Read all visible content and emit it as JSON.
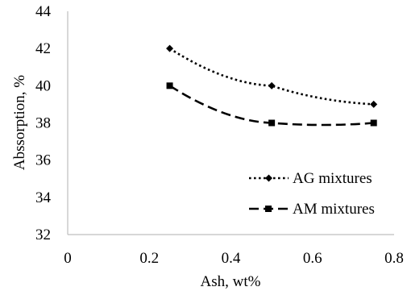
{
  "chart_data": {
    "type": "line",
    "xlabel": "Ash, wt%",
    "ylabel": "Abssorption, %",
    "xlim": [
      0,
      0.8
    ],
    "ylim": [
      32,
      44
    ],
    "xticks": [
      0,
      0.2,
      0.4,
      0.6,
      0.8
    ],
    "xtick_labels": [
      "0",
      "0.2",
      "0.4",
      "0.6",
      "0.8"
    ],
    "yticks": [
      32,
      34,
      36,
      38,
      40,
      42,
      44
    ],
    "ytick_labels": [
      "32",
      "34",
      "36",
      "38",
      "40",
      "42",
      "44"
    ],
    "grid": false,
    "legend_position": "bottom-right",
    "series": [
      {
        "name": "AG mixtures",
        "x": [
          0.25,
          0.5,
          0.75
        ],
        "y": [
          42,
          40,
          39
        ],
        "marker": "diamond",
        "line_style": "dotted",
        "color": "#000000"
      },
      {
        "name": "AM mixtures",
        "x": [
          0.25,
          0.5,
          0.75
        ],
        "y": [
          40,
          38,
          38
        ],
        "marker": "square",
        "line_style": "dashed",
        "color": "#000000"
      }
    ]
  }
}
